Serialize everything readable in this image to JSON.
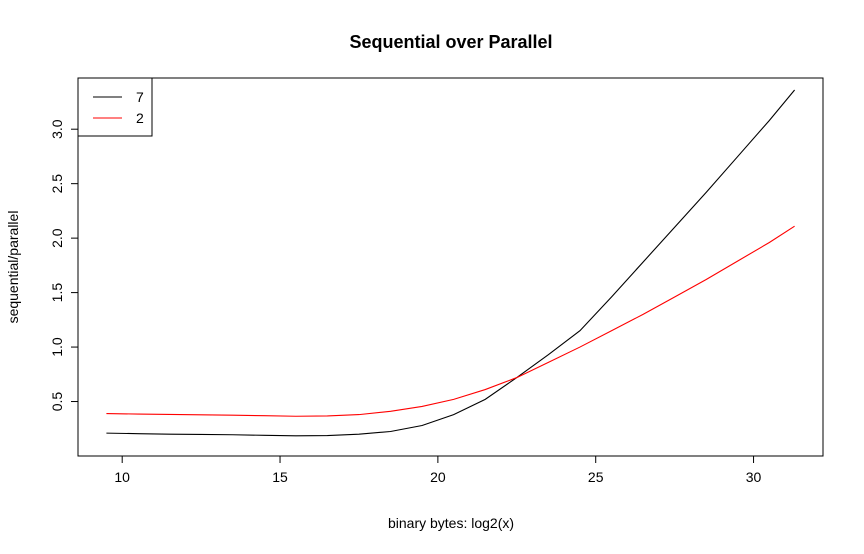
{
  "chart_data": {
    "type": "line",
    "title": "Sequential over Parallel",
    "xlabel": "binary bytes: log2(x)",
    "ylabel": "sequential/parallel",
    "xlim": [
      8.6,
      32.2
    ],
    "ylim": [
      0.0,
      3.47
    ],
    "x_ticks": [
      10,
      15,
      20,
      25,
      30
    ],
    "x_tick_labels": [
      "10",
      "15",
      "20",
      "25",
      "30"
    ],
    "y_ticks": [
      0.5,
      1.0,
      1.5,
      2.0,
      2.5,
      3.0
    ],
    "y_tick_labels": [
      "0.5",
      "1.0",
      "1.5",
      "2.0",
      "2.5",
      "3.0"
    ],
    "grid": false,
    "legend_position": "top-left",
    "series": [
      {
        "name": "7",
        "color": "#000000",
        "x": [
          9.5,
          10.5,
          11.5,
          12.5,
          13.5,
          14.5,
          15.5,
          16.5,
          17.5,
          18.5,
          19.5,
          20.5,
          21.5,
          22.5,
          23.5,
          24.5,
          25.5,
          26.5,
          27.5,
          28.5,
          29.5,
          30.5,
          31.3
        ],
        "y": [
          0.21,
          0.205,
          0.2,
          0.198,
          0.195,
          0.19,
          0.185,
          0.188,
          0.2,
          0.225,
          0.28,
          0.38,
          0.52,
          0.72,
          0.93,
          1.15,
          1.46,
          1.78,
          2.1,
          2.42,
          2.75,
          3.08,
          3.36
        ]
      },
      {
        "name": "2",
        "color": "#ff0000",
        "x": [
          9.5,
          10.5,
          11.5,
          12.5,
          13.5,
          14.5,
          15.5,
          16.5,
          17.5,
          18.5,
          19.5,
          20.5,
          21.5,
          22.5,
          23.5,
          24.5,
          25.5,
          26.5,
          27.5,
          28.5,
          29.5,
          30.5,
          31.3
        ],
        "y": [
          0.39,
          0.385,
          0.382,
          0.378,
          0.375,
          0.37,
          0.365,
          0.368,
          0.38,
          0.41,
          0.455,
          0.52,
          0.61,
          0.72,
          0.86,
          1.0,
          1.15,
          1.3,
          1.46,
          1.62,
          1.79,
          1.96,
          2.11
        ]
      }
    ]
  }
}
